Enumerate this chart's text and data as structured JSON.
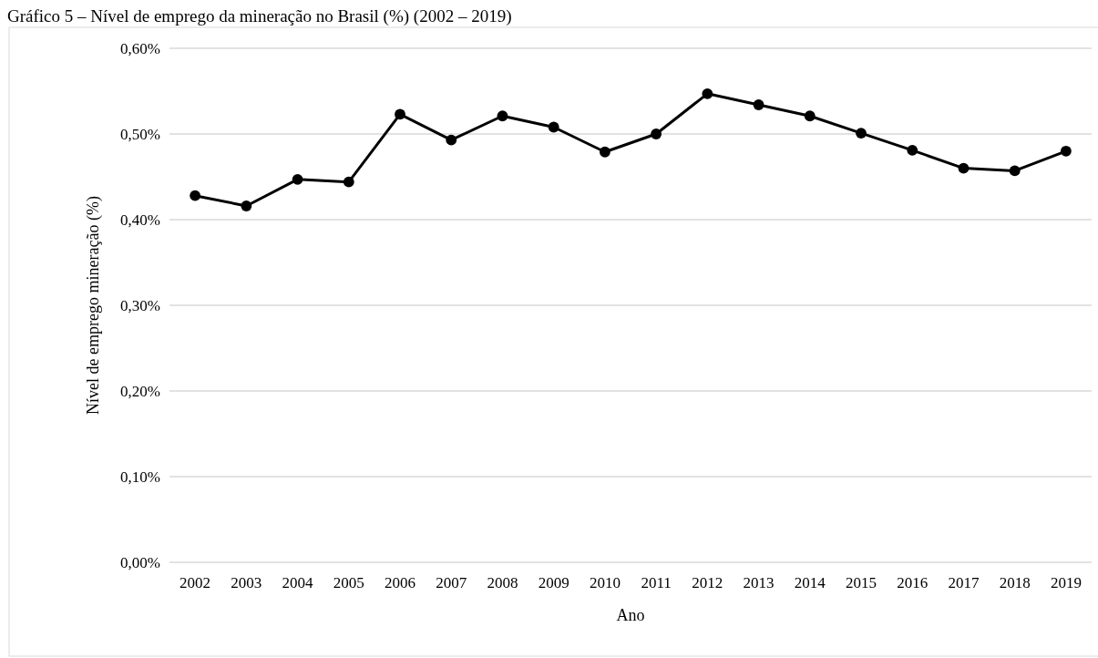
{
  "chart_data": {
    "type": "line",
    "title": "Gráfico 5 – Nível de emprego da mineração no Brasil (%) (2002 – 2019)",
    "xlabel": "Ano",
    "ylabel": "Nível de emprego mineração (%)",
    "categories": [
      "2002",
      "2003",
      "2004",
      "2005",
      "2006",
      "2007",
      "2008",
      "2009",
      "2010",
      "2011",
      "2012",
      "2013",
      "2014",
      "2015",
      "2016",
      "2017",
      "2018",
      "2019"
    ],
    "series": [
      {
        "color": "#000000",
        "values": [
          0.428,
          0.416,
          0.447,
          0.444,
          0.523,
          0.493,
          0.521,
          0.508,
          0.479,
          0.5,
          0.547,
          0.534,
          0.521,
          0.501,
          0.481,
          0.46,
          0.457,
          0.48
        ]
      }
    ],
    "ylim": [
      0,
      0.6
    ],
    "yticks": [
      {
        "value": 0,
        "label": "0,00%"
      },
      {
        "value": 0.1,
        "label": "0,10%"
      },
      {
        "value": 0.2,
        "label": "0,20%"
      },
      {
        "value": 0.3,
        "label": "0,30%"
      },
      {
        "value": 0.4,
        "label": "0,40%"
      },
      {
        "value": 0.5,
        "label": "0,50%"
      },
      {
        "value": 0.6,
        "label": "0,60%"
      }
    ],
    "grid": "y",
    "marker": "circle",
    "line_style": "solid"
  }
}
